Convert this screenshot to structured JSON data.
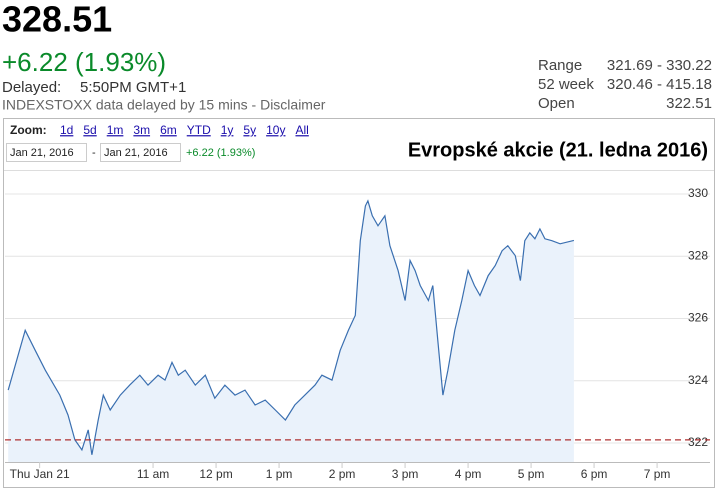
{
  "header": {
    "price": "328.51",
    "change": "+6.22 (1.93%)",
    "delayed_label": "Delayed:",
    "delayed_time": "5:50PM GMT+1",
    "source": "INDEXSTOXX data delayed by 15 mins - Disclaimer"
  },
  "stats": [
    {
      "label": "Range",
      "value": "321.69 - 330.22"
    },
    {
      "label": "52 week",
      "value": "320.46 - 415.18"
    },
    {
      "label": "Open",
      "value": "322.51"
    }
  ],
  "toolbar": {
    "zoom_label": "Zoom:",
    "zoom_options": [
      "1d",
      "5d",
      "1m",
      "3m",
      "6m",
      "YTD",
      "1y",
      "5y",
      "10y",
      "All"
    ],
    "date_from": "Jan 21, 2016",
    "date_sep": "-",
    "date_to": "Jan 21, 2016",
    "change": "+6.22 (1.93%)"
  },
  "chart_data": {
    "type": "area",
    "title": "Evropské akcie (21. ledna 2016)",
    "color": "#3a6fb0",
    "fill": "#eaf2fb",
    "x": [
      8.7,
      8.97,
      9.13,
      9.29,
      9.52,
      9.65,
      9.76,
      9.87,
      9.97,
      10.03,
      10.13,
      10.21,
      10.32,
      10.48,
      10.63,
      10.79,
      10.92,
      11.08,
      11.19,
      11.3,
      11.4,
      11.51,
      11.67,
      11.83,
      11.98,
      12.14,
      12.3,
      12.46,
      12.62,
      12.78,
      12.94,
      13.1,
      13.25,
      13.41,
      13.57,
      13.68,
      13.84,
      13.97,
      14.1,
      14.21,
      14.29,
      14.37,
      14.41,
      14.48,
      14.57,
      14.68,
      14.76,
      14.89,
      15.0,
      15.08,
      15.16,
      15.24,
      15.37,
      15.44,
      15.52,
      15.6,
      15.68,
      15.79,
      15.9,
      16.0,
      16.1,
      16.19,
      16.32,
      16.43,
      16.54,
      16.63,
      16.75,
      16.83,
      16.9,
      16.98,
      17.06,
      17.14,
      17.22,
      17.33,
      17.46,
      17.68
    ],
    "values": [
      323.7,
      325.62,
      324.98,
      324.34,
      323.54,
      322.9,
      322.1,
      321.78,
      322.42,
      321.62,
      322.74,
      323.54,
      323.06,
      323.54,
      323.86,
      324.18,
      323.86,
      324.18,
      324.02,
      324.59,
      324.18,
      324.34,
      323.86,
      324.18,
      323.44,
      323.86,
      323.54,
      323.7,
      323.22,
      323.38,
      323.06,
      322.74,
      323.22,
      323.54,
      323.86,
      324.18,
      324.02,
      324.98,
      325.62,
      326.1,
      328.5,
      329.62,
      329.78,
      329.3,
      328.98,
      329.3,
      328.34,
      327.54,
      326.58,
      327.86,
      327.54,
      327.06,
      326.58,
      327.06,
      325.3,
      323.54,
      324.34,
      325.62,
      326.58,
      327.54,
      327.06,
      326.74,
      327.38,
      327.7,
      328.18,
      328.34,
      328.02,
      327.22,
      328.5,
      328.75,
      328.56,
      328.88,
      328.56,
      328.5,
      328.4,
      328.51
    ],
    "reference_line": 322.1,
    "reference_color": "#b03030",
    "xlim": [
      8.65,
      19.84
    ],
    "ylim": [
      321.39,
      330.74
    ],
    "xticks": [
      {
        "value": 9.2,
        "label": "Thu Jan 21"
      },
      {
        "value": 11,
        "label": "11 am"
      },
      {
        "value": 12,
        "label": "12 pm"
      },
      {
        "value": 13,
        "label": "1 pm"
      },
      {
        "value": 14,
        "label": "2 pm"
      },
      {
        "value": 15,
        "label": "3 pm"
      },
      {
        "value": 16,
        "label": "4 pm"
      },
      {
        "value": 17,
        "label": "5 pm"
      },
      {
        "value": 18,
        "label": "6 pm"
      },
      {
        "value": 19,
        "label": "7 pm"
      }
    ],
    "yticks": [
      322,
      324,
      326,
      328,
      330
    ],
    "grid": true
  }
}
